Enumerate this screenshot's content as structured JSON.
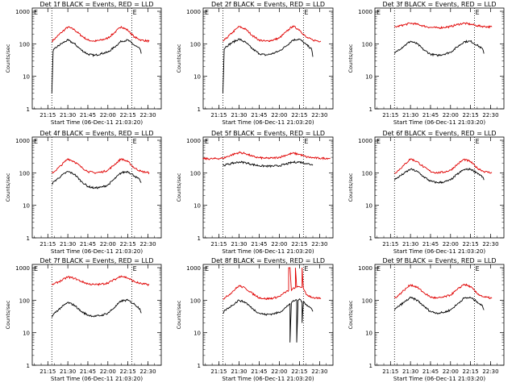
{
  "colors": {
    "events": "#000000",
    "lld": "#e00000",
    "axes": "#000000"
  },
  "common": {
    "ylabel": "Counts/sec",
    "xlabel": "Start Time (06-Dec-11 21:03:20)",
    "x_ticks": [
      "21:15",
      "21:30",
      "21:45",
      "22:00",
      "22:15",
      "22:30"
    ],
    "y_ticks": [
      "1",
      "10",
      "100",
      "1000"
    ],
    "marker_label": "E"
  },
  "chart_data": [
    {
      "type": "line",
      "title": "Det 1f BLACK = Events, RED = LLD",
      "y_scale": "log",
      "ylim": [
        1,
        1000
      ],
      "xlim": [
        "21:03:20",
        "22:40"
      ],
      "dotted_lines": [
        "21:18",
        "22:18"
      ],
      "series": [
        {
          "name": "LLD",
          "x": [
            "21:18",
            "21:20",
            "21:25",
            "21:30",
            "21:35",
            "21:40",
            "21:45",
            "21:50",
            "21:55",
            "22:00",
            "22:05",
            "22:10",
            "22:15",
            "22:20",
            "22:25",
            "22:31"
          ],
          "y": [
            120,
            140,
            220,
            330,
            270,
            180,
            130,
            120,
            130,
            150,
            220,
            340,
            260,
            160,
            130,
            120
          ]
        },
        {
          "name": "Events",
          "x": [
            "21:18",
            "21:19",
            "21:20",
            "21:25",
            "21:30",
            "21:35",
            "21:40",
            "21:45",
            "21:50",
            "21:55",
            "22:00",
            "22:05",
            "22:10",
            "22:15",
            "22:20",
            "22:24",
            "22:25"
          ],
          "y": [
            3,
            60,
            70,
            100,
            130,
            100,
            65,
            48,
            44,
            50,
            55,
            80,
            120,
            130,
            90,
            70,
            50
          ]
        }
      ]
    },
    {
      "type": "line",
      "title": "Det 2f BLACK = Events, RED = LLD",
      "y_scale": "log",
      "ylim": [
        1,
        1000
      ],
      "xlim": [
        "21:03:20",
        "22:40"
      ],
      "dotted_lines": [
        "21:18",
        "22:18"
      ],
      "series": [
        {
          "name": "LLD",
          "x": [
            "21:18",
            "21:20",
            "21:25",
            "21:30",
            "21:35",
            "21:40",
            "21:45",
            "21:50",
            "21:55",
            "22:00",
            "22:05",
            "22:10",
            "22:15",
            "22:20",
            "22:25",
            "22:31"
          ],
          "y": [
            120,
            140,
            220,
            340,
            280,
            180,
            130,
            120,
            130,
            150,
            230,
            350,
            270,
            160,
            130,
            120
          ]
        },
        {
          "name": "Events",
          "x": [
            "21:18",
            "21:19",
            "21:20",
            "21:25",
            "21:30",
            "21:35",
            "21:40",
            "21:45",
            "21:50",
            "21:55",
            "22:00",
            "22:05",
            "22:10",
            "22:15",
            "22:20",
            "22:24",
            "22:25"
          ],
          "y": [
            3,
            70,
            80,
            110,
            140,
            110,
            70,
            50,
            45,
            50,
            60,
            85,
            130,
            140,
            95,
            70,
            40
          ]
        }
      ]
    },
    {
      "type": "line",
      "title": "Det 3f BLACK = Events, RED = LLD",
      "y_scale": "log",
      "ylim": [
        1,
        1000
      ],
      "xlim": [
        "21:03:20",
        "22:40"
      ],
      "dotted_lines": [
        "21:18",
        "22:18"
      ],
      "series": [
        {
          "name": "LLD",
          "x": [
            "21:18",
            "21:20",
            "21:25",
            "21:30",
            "21:35",
            "21:40",
            "21:45",
            "21:50",
            "21:55",
            "22:00",
            "22:05",
            "22:10",
            "22:15",
            "22:20",
            "22:25",
            "22:31"
          ],
          "y": [
            330,
            340,
            380,
            430,
            400,
            350,
            320,
            310,
            320,
            340,
            390,
            430,
            400,
            360,
            340,
            330
          ]
        },
        {
          "name": "Events",
          "x": [
            "21:18",
            "21:20",
            "21:25",
            "21:30",
            "21:35",
            "21:40",
            "21:45",
            "21:50",
            "21:55",
            "22:00",
            "22:05",
            "22:10",
            "22:15",
            "22:20",
            "22:24",
            "22:25"
          ],
          "y": [
            50,
            60,
            85,
            120,
            100,
            65,
            48,
            44,
            48,
            55,
            80,
            115,
            120,
            90,
            70,
            50
          ]
        }
      ]
    },
    {
      "type": "line",
      "title": "Det 4f BLACK = Events, RED = LLD",
      "y_scale": "log",
      "ylim": [
        1,
        1000
      ],
      "xlim": [
        "21:03:20",
        "22:40"
      ],
      "dotted_lines": [
        "21:18",
        "22:18"
      ],
      "series": [
        {
          "name": "LLD",
          "x": [
            "21:18",
            "21:20",
            "21:25",
            "21:30",
            "21:35",
            "21:40",
            "21:45",
            "21:50",
            "21:55",
            "22:00",
            "22:05",
            "22:10",
            "22:15",
            "22:20",
            "22:25",
            "22:31"
          ],
          "y": [
            100,
            110,
            170,
            270,
            220,
            150,
            110,
            100,
            105,
            120,
            180,
            270,
            220,
            140,
            110,
            100
          ]
        },
        {
          "name": "Events",
          "x": [
            "21:18",
            "21:20",
            "21:25",
            "21:30",
            "21:35",
            "21:40",
            "21:45",
            "21:50",
            "21:55",
            "22:00",
            "22:05",
            "22:10",
            "22:15",
            "22:20",
            "22:24",
            "22:25"
          ],
          "y": [
            45,
            55,
            80,
            110,
            90,
            55,
            38,
            34,
            36,
            42,
            65,
            100,
            110,
            80,
            60,
            50
          ]
        }
      ]
    },
    {
      "type": "line",
      "title": "Det 5f BLACK = Events, RED = LLD",
      "y_scale": "log",
      "ylim": [
        1,
        1000
      ],
      "xlim": [
        "21:03:20",
        "22:40"
      ],
      "dotted_lines": [
        "21:18",
        "22:18"
      ],
      "series": [
        {
          "name": "LLD",
          "x": [
            "21:03",
            "21:10",
            "21:18",
            "21:25",
            "21:30",
            "21:35",
            "21:40",
            "21:45",
            "21:50",
            "21:55",
            "22:00",
            "22:05",
            "22:10",
            "22:15",
            "22:20",
            "22:25",
            "22:30",
            "22:38"
          ],
          "y": [
            270,
            270,
            280,
            360,
            420,
            390,
            320,
            290,
            280,
            285,
            300,
            350,
            400,
            370,
            310,
            290,
            280,
            280
          ]
        },
        {
          "name": "Events",
          "x": [
            "21:18",
            "21:20",
            "21:25",
            "21:30",
            "21:35",
            "21:40",
            "21:45",
            "21:50",
            "21:55",
            "22:00",
            "22:05",
            "22:10",
            "22:15",
            "22:20",
            "22:24",
            "22:25"
          ],
          "y": [
            170,
            175,
            195,
            215,
            205,
            180,
            165,
            160,
            160,
            165,
            185,
            210,
            215,
            195,
            180,
            170
          ]
        }
      ]
    },
    {
      "type": "line",
      "title": "Det 6f BLACK = Events, RED = LLD",
      "y_scale": "log",
      "ylim": [
        1,
        1000
      ],
      "xlim": [
        "21:03:20",
        "22:40"
      ],
      "dotted_lines": [
        "21:18",
        "22:18"
      ],
      "series": [
        {
          "name": "LLD",
          "x": [
            "21:18",
            "21:20",
            "21:25",
            "21:30",
            "21:35",
            "21:40",
            "21:45",
            "21:50",
            "21:55",
            "22:00",
            "22:05",
            "22:10",
            "22:15",
            "22:20",
            "22:25",
            "22:31"
          ],
          "y": [
            100,
            110,
            170,
            270,
            220,
            150,
            110,
            100,
            105,
            120,
            180,
            260,
            220,
            140,
            110,
            100
          ]
        },
        {
          "name": "Events",
          "x": [
            "21:18",
            "21:20",
            "21:25",
            "21:30",
            "21:35",
            "21:40",
            "21:45",
            "21:50",
            "21:55",
            "22:00",
            "22:05",
            "22:10",
            "22:15",
            "22:20",
            "22:24",
            "22:25"
          ],
          "y": [
            60,
            70,
            95,
            130,
            110,
            75,
            55,
            50,
            52,
            60,
            90,
            125,
            130,
            100,
            75,
            60
          ]
        }
      ]
    },
    {
      "type": "line",
      "title": "Det 7f BLACK = Events, RED = LLD",
      "y_scale": "log",
      "ylim": [
        1,
        1000
      ],
      "xlim": [
        "21:03:20",
        "22:40"
      ],
      "dotted_lines": [
        "21:18",
        "22:18"
      ],
      "series": [
        {
          "name": "LLD",
          "x": [
            "21:18",
            "21:20",
            "21:25",
            "21:30",
            "21:35",
            "21:40",
            "21:45",
            "21:50",
            "21:55",
            "22:00",
            "22:05",
            "22:10",
            "22:15",
            "22:20",
            "22:25",
            "22:31"
          ],
          "y": [
            300,
            320,
            400,
            520,
            470,
            380,
            320,
            300,
            310,
            340,
            430,
            560,
            480,
            370,
            320,
            300
          ]
        },
        {
          "name": "Events",
          "x": [
            "21:18",
            "21:20",
            "21:25",
            "21:30",
            "21:35",
            "21:40",
            "21:45",
            "21:50",
            "21:55",
            "22:00",
            "22:05",
            "22:10",
            "22:15",
            "22:20",
            "22:24",
            "22:25"
          ],
          "y": [
            30,
            40,
            60,
            85,
            70,
            45,
            35,
            32,
            34,
            40,
            60,
            95,
            100,
            75,
            55,
            40
          ]
        }
      ]
    },
    {
      "type": "line",
      "title": "Det 8f BLACK = Events, RED = LLD",
      "y_scale": "log",
      "ylim": [
        1,
        1000
      ],
      "xlim": [
        "21:03:20",
        "22:40"
      ],
      "dotted_lines": [
        "21:18",
        "22:18"
      ],
      "series": [
        {
          "name": "LLD",
          "x": [
            "21:18",
            "21:20",
            "21:25",
            "21:30",
            "21:35",
            "21:40",
            "21:45",
            "21:50",
            "21:55",
            "22:00",
            "22:05",
            "22:07",
            "22:07",
            "22:08",
            "22:09",
            "22:10",
            "22:12",
            "22:12",
            "22:13",
            "22:15",
            "22:17",
            "22:17",
            "22:18",
            "22:20",
            "22:25",
            "22:31"
          ],
          "y": [
            110,
            120,
            180,
            280,
            230,
            160,
            120,
            110,
            115,
            130,
            180,
            200,
            1000,
            1000,
            200,
            220,
            250,
            1000,
            250,
            260,
            250,
            1000,
            220,
            150,
            120,
            110
          ]
        },
        {
          "name": "Events",
          "x": [
            "21:18",
            "21:20",
            "21:25",
            "21:30",
            "21:35",
            "21:40",
            "21:45",
            "21:50",
            "21:55",
            "22:00",
            "22:05",
            "22:08",
            "22:08",
            "22:09",
            "22:10",
            "22:12",
            "22:13",
            "22:13",
            "22:14",
            "22:15",
            "22:17",
            "22:17",
            "22:18",
            "22:20",
            "22:24",
            "22:25"
          ],
          "y": [
            40,
            50,
            70,
            100,
            85,
            55,
            40,
            36,
            38,
            42,
            60,
            80,
            5,
            80,
            90,
            100,
            100,
            5,
            100,
            110,
            90,
            20,
            90,
            75,
            55,
            45
          ]
        }
      ]
    },
    {
      "type": "line",
      "title": "Det 9f BLACK = Events, RED = LLD",
      "y_scale": "log",
      "ylim": [
        1,
        1000
      ],
      "xlim": [
        "21:03:20",
        "22:40"
      ],
      "dotted_lines": [
        "21:18",
        "22:18"
      ],
      "series": [
        {
          "name": "LLD",
          "x": [
            "21:18",
            "21:20",
            "21:25",
            "21:30",
            "21:35",
            "21:40",
            "21:45",
            "21:50",
            "21:55",
            "22:00",
            "22:05",
            "22:10",
            "22:15",
            "22:20",
            "22:25",
            "22:31"
          ],
          "y": [
            120,
            130,
            200,
            300,
            250,
            170,
            125,
            115,
            125,
            145,
            210,
            310,
            260,
            160,
            125,
            115
          ]
        },
        {
          "name": "Events",
          "x": [
            "21:18",
            "21:20",
            "21:25",
            "21:30",
            "21:35",
            "21:40",
            "21:45",
            "21:50",
            "21:55",
            "22:00",
            "22:05",
            "22:10",
            "22:15",
            "22:20",
            "22:24",
            "22:25"
          ],
          "y": [
            50,
            60,
            85,
            120,
            100,
            65,
            45,
            40,
            42,
            50,
            75,
            115,
            120,
            90,
            65,
            50
          ]
        }
      ]
    }
  ]
}
